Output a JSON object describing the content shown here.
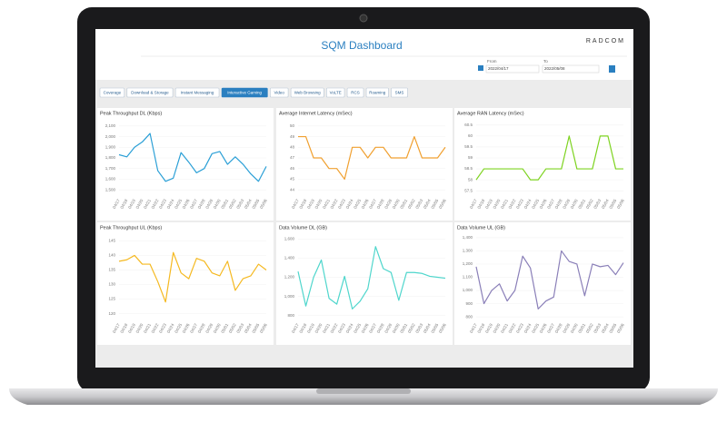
{
  "header": {
    "title": "SQM Dashboard",
    "logo": "RADCOM",
    "from_label": "From",
    "from_date": "2022/04/17",
    "to_label": "To",
    "to_date": "2022/05/08"
  },
  "tabs": [
    "Coverage",
    "Download & Storage",
    "Instant Messaging",
    "Interactive Gaming",
    "Video",
    "Web Browsing",
    "VoLTE",
    "RCS",
    "Roaming",
    "SMS"
  ],
  "active_tab": "Interactive Gaming",
  "chart_data": [
    {
      "type": "line",
      "title": "Peak Throughput DL (Kbps)",
      "color": "#2a9fd6",
      "categories": [
        "04/17",
        "04/18",
        "04/19",
        "04/20",
        "04/21",
        "04/22",
        "04/23",
        "04/24",
        "04/25",
        "04/26",
        "04/27",
        "04/28",
        "04/29",
        "04/30",
        "05/01",
        "05/02",
        "05/03",
        "05/04",
        "05/05",
        "05/06"
      ],
      "values": [
        1830,
        1810,
        1900,
        1950,
        2030,
        1680,
        1580,
        1610,
        1850,
        1760,
        1660,
        1700,
        1840,
        1860,
        1740,
        1810,
        1740,
        1650,
        1580,
        1720
      ],
      "ylim": [
        1450,
        2150
      ],
      "yticks": [
        {
          "value": 1500,
          "label": "1,500"
        },
        {
          "value": 1600,
          "label": "1,600"
        },
        {
          "value": 1700,
          "label": "1,700"
        },
        {
          "value": 1800,
          "label": "1,800"
        },
        {
          "value": 1900,
          "label": "1,900"
        },
        {
          "value": 2000,
          "label": "2,000"
        },
        {
          "value": 2100,
          "label": "2,100"
        }
      ]
    },
    {
      "type": "line",
      "title": "Average  Internet Latency (mSec)",
      "color": "#f0a030",
      "categories": [
        "04/17",
        "04/18",
        "04/19",
        "04/20",
        "04/21",
        "04/22",
        "04/23",
        "04/24",
        "04/25",
        "04/26",
        "04/27",
        "04/28",
        "04/29",
        "04/30",
        "05/01",
        "05/02",
        "05/03",
        "05/04",
        "05/05",
        "05/06"
      ],
      "values": [
        49,
        49,
        47,
        47,
        46,
        46,
        45,
        48,
        48,
        47,
        48,
        48,
        47,
        47,
        47,
        49,
        47,
        47,
        47,
        48
      ],
      "ylim": [
        43.5,
        50.5
      ],
      "yticks": [
        44,
        45,
        46,
        47,
        48,
        49,
        50
      ]
    },
    {
      "type": "line",
      "title": "Average RAN Latency (mSec)",
      "color": "#7ed321",
      "categories": [
        "04/17",
        "04/18",
        "04/19",
        "04/20",
        "04/21",
        "04/22",
        "04/23",
        "04/24",
        "04/25",
        "04/26",
        "04/27",
        "04/28",
        "04/29",
        "04/30",
        "05/01",
        "05/02",
        "05/03",
        "05/04",
        "05/05",
        "05/06"
      ],
      "values": [
        58,
        58.5,
        58.5,
        58.5,
        58.5,
        58.5,
        58.5,
        58,
        58,
        58.5,
        58.5,
        58.5,
        60,
        58.5,
        58.5,
        58.5,
        60,
        60,
        58.5,
        58.5
      ],
      "ylim": [
        57.3,
        60.7
      ],
      "yticks": [
        57.5,
        58,
        58.5,
        59,
        59.5,
        60,
        60.5
      ]
    },
    {
      "type": "line",
      "title": "Peak Throughput UL (Kbps)",
      "color": "#f5b921",
      "categories": [
        "04/17",
        "04/18",
        "04/19",
        "04/20",
        "04/21",
        "04/22",
        "04/23",
        "04/24",
        "04/25",
        "04/26",
        "04/27",
        "04/28",
        "04/29",
        "04/30",
        "05/01",
        "05/02",
        "05/03",
        "05/04",
        "05/05",
        "05/06"
      ],
      "values": [
        138,
        138.5,
        140,
        137,
        137,
        131,
        124,
        141,
        134,
        132,
        139,
        138,
        134,
        133,
        138,
        128,
        132,
        133,
        137,
        135
      ],
      "ylim": [
        118,
        147
      ],
      "yticks": [
        120,
        125,
        130,
        135,
        140,
        145
      ]
    },
    {
      "type": "line",
      "title": "Data Volume DL (GB)",
      "color": "#4fd6cc",
      "categories": [
        "04/17",
        "04/18",
        "04/19",
        "04/20",
        "04/21",
        "04/22",
        "04/23",
        "04/24",
        "04/25",
        "04/26",
        "04/27",
        "04/28",
        "04/29",
        "04/30",
        "05/01",
        "05/02",
        "05/03",
        "05/04",
        "05/05",
        "05/06"
      ],
      "values": [
        1260,
        900,
        1200,
        1380,
        980,
        920,
        1210,
        870,
        950,
        1080,
        1520,
        1290,
        1250,
        960,
        1250,
        1250,
        1240,
        1210,
        1200,
        1190
      ],
      "ylim": [
        760,
        1640
      ],
      "yticks": [
        {
          "value": 800,
          "label": "800"
        },
        {
          "value": 1000,
          "label": "1,000"
        },
        {
          "value": 1200,
          "label": "1,200"
        },
        {
          "value": 1400,
          "label": "1,400"
        },
        {
          "value": 1600,
          "label": "1,600"
        }
      ]
    },
    {
      "type": "line",
      "title": "Data Volume UL (GB)",
      "color": "#8a7fb8",
      "categories": [
        "04/17",
        "04/18",
        "04/19",
        "04/20",
        "04/21",
        "04/22",
        "04/23",
        "04/24",
        "04/25",
        "04/26",
        "04/27",
        "04/28",
        "04/29",
        "04/30",
        "05/01",
        "05/02",
        "05/03",
        "05/04",
        "05/05",
        "05/06"
      ],
      "values": [
        1180,
        900,
        1000,
        1050,
        920,
        1000,
        1260,
        1170,
        860,
        920,
        950,
        1300,
        1220,
        1200,
        960,
        1200,
        1180,
        1190,
        1120,
        1210
      ],
      "ylim": [
        780,
        1420
      ],
      "yticks": [
        800,
        900,
        {
          "value": 1000,
          "label": "1,000"
        },
        {
          "value": 1100,
          "label": "1,100"
        },
        {
          "value": 1200,
          "label": "1,200"
        },
        {
          "value": 1300,
          "label": "1,300"
        },
        {
          "value": 1400,
          "label": "1,400"
        }
      ]
    }
  ]
}
